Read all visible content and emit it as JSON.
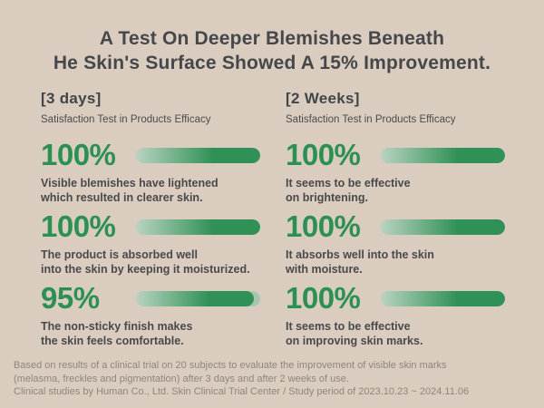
{
  "title": {
    "line1": "A Test On Deeper Blemishes Beneath",
    "line2": "He Skin's Surface Showed A 15% Improvement."
  },
  "colors": {
    "background": "#dacdc0",
    "title_text": "#45474a",
    "accent_green": "#2d9053",
    "bar_gradient_start": "#b9d3c2",
    "bar_gradient_end": "#2f9156",
    "bar_track": "#a7c6b0",
    "footer_text": "#8e857c"
  },
  "columns": [
    {
      "header": "[3 days]",
      "subtitle": "Satisfaction Test in Products Efficacy",
      "stats": [
        {
          "value": "100%",
          "percent": 100,
          "desc_line1": "Visible blemishes have lightened",
          "desc_line2": "which resulted in clearer skin."
        },
        {
          "value": "100%",
          "percent": 100,
          "desc_line1": "The product is absorbed well",
          "desc_line2": "into the skin by keeping it moisturized."
        },
        {
          "value": "95%",
          "percent": 95,
          "desc_line1": "The non-sticky finish makes",
          "desc_line2": "the skin feels comfortable."
        }
      ]
    },
    {
      "header": "[2 Weeks]",
      "subtitle": "Satisfaction Test in Products Efficacy",
      "stats": [
        {
          "value": "100%",
          "percent": 100,
          "desc_line1": "It seems to be effective",
          "desc_line2": "on brightening."
        },
        {
          "value": "100%",
          "percent": 100,
          "desc_line1": "It absorbs well into the skin",
          "desc_line2": "with moisture."
        },
        {
          "value": "100%",
          "percent": 100,
          "desc_line1": "It seems to be effective",
          "desc_line2": "on improving skin marks."
        }
      ]
    }
  ],
  "footer": {
    "line1": "Based on results of a clinical trial on 20 subjects to evaluate the improvement of visible skin marks",
    "line2": "(melasma, freckles and pigmentation) after 3 days and after 2 weeks of use.",
    "line3": "Clinical studies by Human Co., Ltd. Skin Clinical Trial Center / Study period of 2023.10.23 ~ 2024.11.06"
  },
  "chart_data": {
    "type": "bar",
    "title": "A Test On Deeper Blemishes Beneath He Skin's Surface Showed A 15% Improvement.",
    "ylim": [
      0,
      100
    ],
    "unit": "%",
    "legend_position": "none",
    "grid": false,
    "series": [
      {
        "name": "[3 days] Satisfaction Test in Products Efficacy",
        "categories": [
          "Visible blemishes have lightened which resulted in clearer skin.",
          "The product is absorbed well into the skin by keeping it moisturized.",
          "The non-sticky finish makes the skin feels comfortable."
        ],
        "values": [
          100,
          100,
          95
        ]
      },
      {
        "name": "[2 Weeks] Satisfaction Test in Products Efficacy",
        "categories": [
          "It seems to be effective on brightening.",
          "It absorbs well into the skin with moisture.",
          "It seems to be effective on improving skin marks."
        ],
        "values": [
          100,
          100,
          100
        ]
      }
    ]
  }
}
